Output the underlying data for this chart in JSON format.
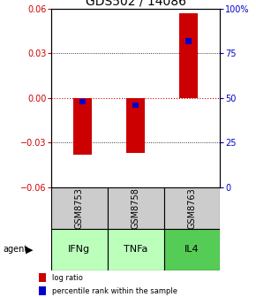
{
  "title": "GDS502 / 14086",
  "samples": [
    "GSM8753",
    "GSM8758",
    "GSM8763"
  ],
  "agents": [
    "IFNg",
    "TNFa",
    "IL4"
  ],
  "log_ratios": [
    -0.038,
    -0.037,
    0.057
  ],
  "percentile_ranks": [
    48,
    46,
    82
  ],
  "ylim_left": [
    -0.06,
    0.06
  ],
  "ylim_right": [
    0,
    100
  ],
  "yticks_left": [
    -0.06,
    -0.03,
    0,
    0.03,
    0.06
  ],
  "yticks_right": [
    0,
    25,
    50,
    75,
    100
  ],
  "ytick_labels_right": [
    "0",
    "25",
    "50",
    "75",
    "100%"
  ],
  "bar_color": "#cc0000",
  "percentile_color": "#0000cc",
  "agent_colors": [
    "#bbffbb",
    "#bbffbb",
    "#55cc55"
  ],
  "sample_box_color": "#cccccc",
  "zero_line_color": "#cc0000",
  "grid_color": "#000000",
  "bar_width": 0.35,
  "percentile_bar_width": 0.12,
  "legend_items": [
    "log ratio",
    "percentile rank within the sample"
  ],
  "title_fontsize": 10,
  "tick_fontsize": 7,
  "label_fontsize": 7,
  "agent_fontsize": 8,
  "sample_fontsize": 7,
  "legend_fontsize": 6
}
